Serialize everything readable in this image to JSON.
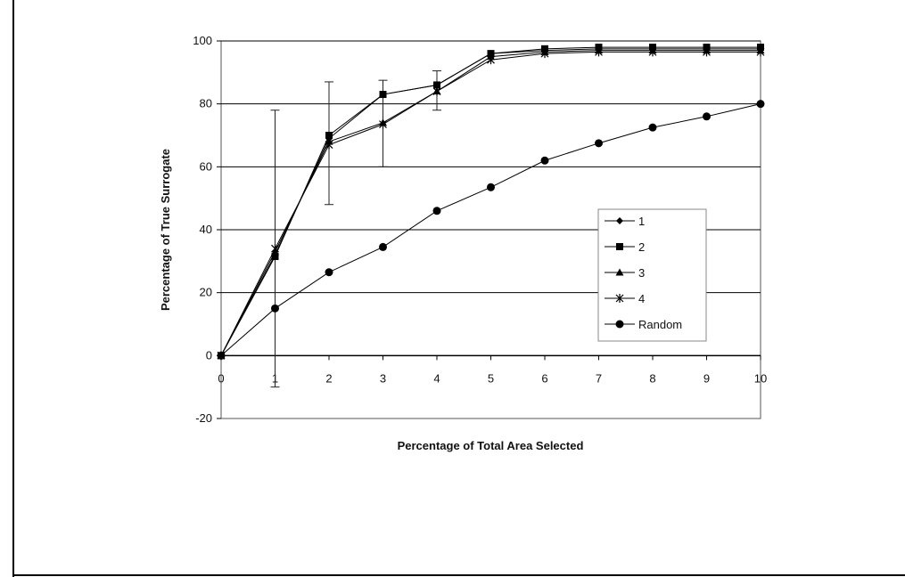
{
  "chart_data": {
    "type": "line",
    "title": "",
    "xlabel": "Percentage of Total Area Selected",
    "ylabel": "Percentage of True Surrogate",
    "x": [
      0,
      1,
      2,
      3,
      4,
      5,
      6,
      7,
      8,
      9,
      10
    ],
    "xlim": [
      0,
      10
    ],
    "ylim": [
      -20,
      100
    ],
    "x_ticks": [
      "0",
      "1",
      "2",
      "3",
      "4",
      "5",
      "6",
      "7",
      "8",
      "9",
      "10"
    ],
    "y_ticks": [
      "100",
      "80",
      "60",
      "40",
      "20",
      "0",
      "-20"
    ],
    "grid": "horizontal gridlines at 20, 40, 60, 80, 100",
    "legend_position": "right",
    "series": [
      {
        "name": "1",
        "marker": "diamond",
        "values": [
          0,
          32,
          69,
          83,
          86,
          96,
          97,
          97.5,
          97.5,
          97.5,
          97.5
        ]
      },
      {
        "name": "2",
        "marker": "square",
        "values": [
          0,
          31.5,
          70,
          83,
          86,
          96,
          97.5,
          98,
          98,
          98,
          98
        ]
      },
      {
        "name": "3",
        "marker": "triangle",
        "values": [
          0,
          33,
          68,
          74,
          84,
          95,
          96.5,
          97,
          97,
          97,
          97
        ]
      },
      {
        "name": "4",
        "marker": "x",
        "values": [
          0,
          34,
          67,
          73.5,
          84,
          94,
          96,
          96.5,
          96.5,
          96.5,
          96.5
        ]
      },
      {
        "name": "Random",
        "marker": "circle",
        "values": [
          0,
          15,
          26.5,
          34.5,
          46,
          53.5,
          62,
          67.5,
          72.5,
          76,
          80
        ]
      }
    ],
    "error_bars": [
      {
        "x": 1,
        "low": -10,
        "high": 78
      },
      {
        "x": 2,
        "low": 48,
        "high": 87
      },
      {
        "x": 3,
        "low": 60,
        "high": 87.5
      },
      {
        "x": 4,
        "low": 78,
        "high": 90.5
      }
    ]
  }
}
